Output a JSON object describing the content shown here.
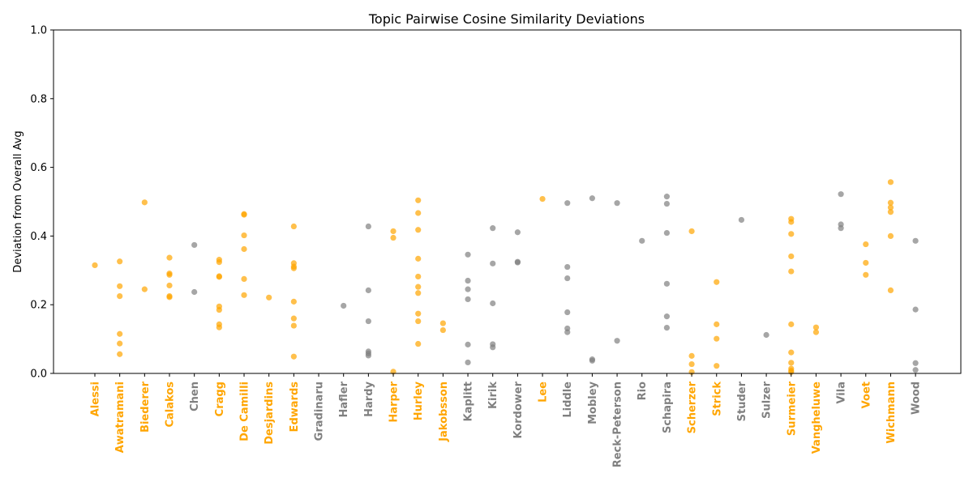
{
  "chart_data": {
    "type": "scatter",
    "title": "Topic Pairwise Cosine Similarity Deviations",
    "xlabel": "",
    "ylabel": "Deviation from Overall Avg",
    "ylim": [
      0,
      1.0
    ],
    "yticks": [
      "0.0",
      "0.2",
      "0.4",
      "0.6",
      "0.8",
      "1.0"
    ],
    "grid": false,
    "highlight_color": "#FFA500",
    "normal_color": "#808080",
    "categories": [
      {
        "name": "Alessi",
        "highlight": true,
        "values": [
          0.315
        ]
      },
      {
        "name": "Awatramani",
        "highlight": true,
        "values": [
          0.326,
          0.254,
          0.225,
          0.115,
          0.087,
          0.056
        ]
      },
      {
        "name": "Biederer",
        "highlight": true,
        "values": [
          0.498,
          0.245
        ]
      },
      {
        "name": "Calakos",
        "highlight": true,
        "values": [
          0.337,
          0.291,
          0.287,
          0.256,
          0.225,
          0.222
        ]
      },
      {
        "name": "Chen",
        "highlight": false,
        "values": [
          0.374,
          0.237
        ]
      },
      {
        "name": "Cragg",
        "highlight": true,
        "values": [
          0.331,
          0.324,
          0.283,
          0.281,
          0.195,
          0.185,
          0.143,
          0.134
        ]
      },
      {
        "name": "De Camilli",
        "highlight": true,
        "values": [
          0.464,
          0.462,
          0.402,
          0.362,
          0.275,
          0.228
        ]
      },
      {
        "name": "Desjardins",
        "highlight": true,
        "values": [
          0.221
        ]
      },
      {
        "name": "Edwards",
        "highlight": true,
        "values": [
          0.428,
          0.321,
          0.311,
          0.306,
          0.209,
          0.16,
          0.139,
          0.049
        ]
      },
      {
        "name": "Gradinaru",
        "highlight": false,
        "values": []
      },
      {
        "name": "Hafler",
        "highlight": false,
        "values": [
          0.197
        ]
      },
      {
        "name": "Hardy",
        "highlight": false,
        "values": [
          0.428,
          0.242,
          0.152,
          0.064,
          0.058,
          0.052
        ]
      },
      {
        "name": "Harper",
        "highlight": true,
        "values": [
          0.414,
          0.395,
          0.005
        ]
      },
      {
        "name": "Hurley",
        "highlight": true,
        "values": [
          0.504,
          0.467,
          0.418,
          0.334,
          0.282,
          0.252,
          0.234,
          0.174,
          0.152,
          0.086
        ]
      },
      {
        "name": "Jakobsson",
        "highlight": true,
        "values": [
          0.146,
          0.126
        ]
      },
      {
        "name": "Kaplitt",
        "highlight": false,
        "values": [
          0.346,
          0.27,
          0.245,
          0.216,
          0.084,
          0.032
        ]
      },
      {
        "name": "Kirik",
        "highlight": false,
        "values": [
          0.423,
          0.32,
          0.204,
          0.085,
          0.076
        ]
      },
      {
        "name": "Kordower",
        "highlight": false,
        "values": [
          0.411,
          0.325,
          0.323
        ]
      },
      {
        "name": "Lee",
        "highlight": true,
        "values": [
          0.508
        ]
      },
      {
        "name": "Liddle",
        "highlight": false,
        "values": [
          0.496,
          0.31,
          0.277,
          0.178,
          0.131,
          0.12
        ]
      },
      {
        "name": "Mobley",
        "highlight": false,
        "values": [
          0.51,
          0.041,
          0.037
        ]
      },
      {
        "name": "Reck-Peterson",
        "highlight": false,
        "values": [
          0.496,
          0.095
        ]
      },
      {
        "name": "Rio",
        "highlight": false,
        "values": [
          0.386
        ]
      },
      {
        "name": "Schapira",
        "highlight": false,
        "values": [
          0.515,
          0.494,
          0.409,
          0.261,
          0.166,
          0.133
        ]
      },
      {
        "name": "Scherzer",
        "highlight": true,
        "values": [
          0.414,
          0.051,
          0.027,
          0.004
        ]
      },
      {
        "name": "Strick",
        "highlight": true,
        "values": [
          0.266,
          0.143,
          0.101,
          0.022
        ]
      },
      {
        "name": "Studer",
        "highlight": false,
        "values": [
          0.447
        ]
      },
      {
        "name": "Sulzer",
        "highlight": false,
        "values": [
          0.112
        ]
      },
      {
        "name": "Surmeier",
        "highlight": true,
        "values": [
          0.45,
          0.441,
          0.406,
          0.341,
          0.297,
          0.143,
          0.061,
          0.031,
          0.014,
          0.008,
          0.004
        ]
      },
      {
        "name": "Vangheluwe",
        "highlight": true,
        "values": [
          0.134,
          0.12
        ]
      },
      {
        "name": "Vila",
        "highlight": false,
        "values": [
          0.522,
          0.434,
          0.423
        ]
      },
      {
        "name": "Voet",
        "highlight": true,
        "values": [
          0.376,
          0.322,
          0.287
        ]
      },
      {
        "name": "Wichmann",
        "highlight": true,
        "values": [
          0.557,
          0.497,
          0.483,
          0.47,
          0.4,
          0.242
        ]
      },
      {
        "name": "Wood",
        "highlight": false,
        "values": [
          0.386,
          0.186,
          0.03,
          0.01
        ]
      }
    ]
  }
}
